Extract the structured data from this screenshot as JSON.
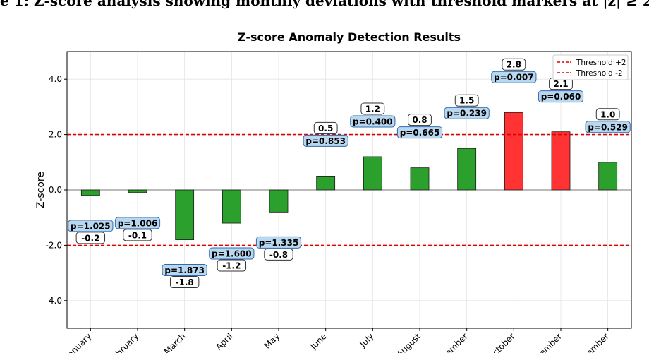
{
  "caption": "e 1: Z-score analysis showing monthly deviations with threshold markers at |z| ≥ 2.",
  "chart_data": {
    "type": "bar",
    "title": "Z-score Anomaly Detection Results",
    "xlabel": "",
    "ylabel": "Z-score",
    "ylim": [
      -5,
      5
    ],
    "yticks": [
      -4,
      -2,
      0,
      2,
      4
    ],
    "ytick_labels": [
      "-4.0",
      "-2.0",
      "0.0",
      "2.0",
      "4.0"
    ],
    "grid": true,
    "categories": [
      "January",
      "February",
      "March",
      "April",
      "May",
      "June",
      "July",
      "August",
      "September",
      "October",
      "November",
      "December"
    ],
    "category_labels_visible": [
      "anuary",
      "bruary",
      "March",
      "April",
      "May",
      "June",
      "July",
      "August",
      "ember",
      "ctober",
      "ember",
      "ember"
    ],
    "values": [
      -0.2,
      -0.1,
      -1.8,
      -1.2,
      -0.8,
      0.5,
      1.2,
      0.8,
      1.5,
      2.8,
      2.1,
      1.0
    ],
    "value_labels": [
      "-0.2",
      "-0.1",
      "-1.8",
      "-1.2",
      "-0.8",
      "0.5",
      "1.2",
      "0.8",
      "1.5",
      "2.8",
      "2.1",
      "1.0"
    ],
    "p_labels": [
      "p=1.025",
      "p=1.006",
      "p=1.873",
      "p=1.600",
      "p=1.335",
      "p=0.853",
      "p=0.400",
      "p=0.665",
      "p=0.239",
      "p=0.007",
      "p=0.060",
      "p=0.529"
    ],
    "thresholds": [
      {
        "name": "Threshold +2",
        "value": 2
      },
      {
        "name": "Threshold -2",
        "value": -2
      }
    ],
    "legend_position": "top-right",
    "colors": {
      "normal": "#2ca02c",
      "anomaly": "#ff3333",
      "threshold": "#dd0000",
      "p_box": "#b9d7ee",
      "p_box_border": "#2e6bb0"
    }
  }
}
